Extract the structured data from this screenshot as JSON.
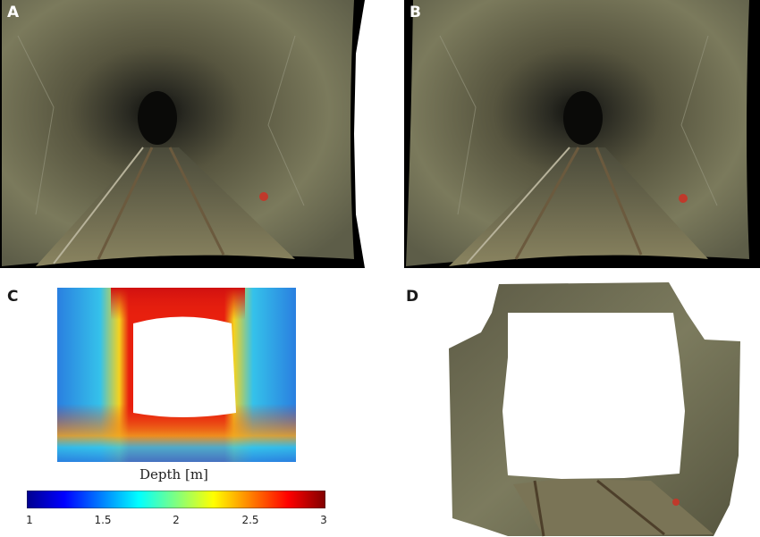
{
  "panels": {
    "a": {
      "letter": "A"
    },
    "b": {
      "letter": "B"
    },
    "c": {
      "letter": "C"
    },
    "d": {
      "letter": "D"
    }
  },
  "depth_map": {
    "caption": "Depth [m]",
    "colorbar": {
      "min": 1,
      "max": 3,
      "ticks": [
        "1",
        "1.5",
        "2",
        "2.5",
        "3"
      ],
      "colormap": "jet"
    }
  }
}
